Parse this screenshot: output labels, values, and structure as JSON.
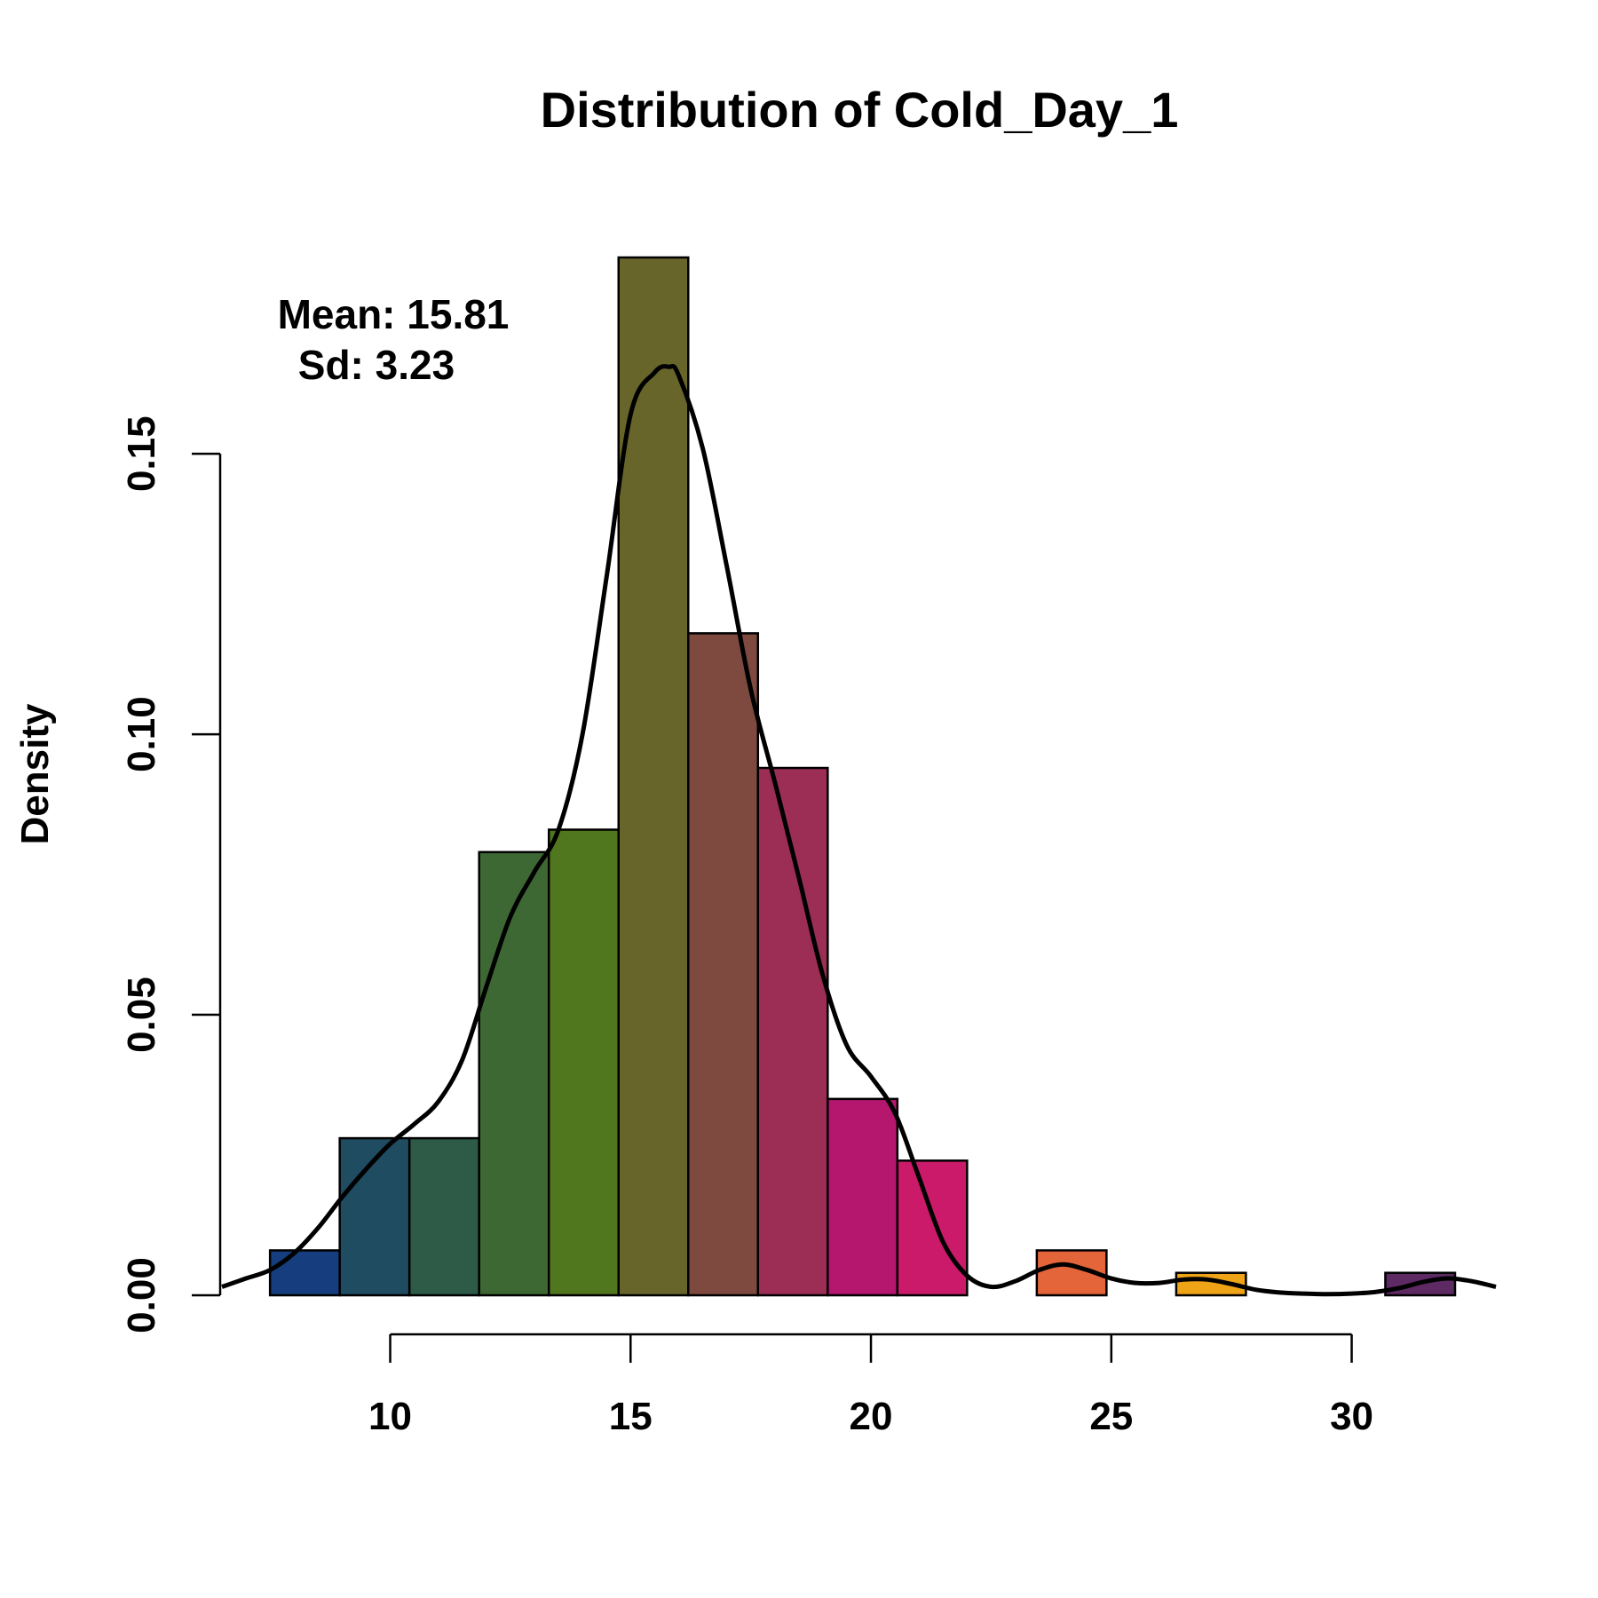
{
  "chart_data": {
    "type": "bar",
    "title": "Distribution of Cold_Day_1",
    "xlabel": "",
    "ylabel": "Density",
    "xlim": [
      6.5,
      33
    ],
    "ylim": [
      0,
      0.185
    ],
    "x_ticks": [
      10,
      15,
      20,
      25,
      30
    ],
    "x_tick_labels": [
      "10",
      "15",
      "20",
      "25",
      "30"
    ],
    "y_ticks": [
      0,
      0.05,
      0.1,
      0.15
    ],
    "y_tick_labels": [
      "0.00",
      "0.05",
      "0.10",
      "0.15"
    ],
    "bins": [
      {
        "x0": 7.5,
        "x1": 8.95,
        "density": 0.008,
        "color": "#163E7E"
      },
      {
        "x0": 8.95,
        "x1": 10.4,
        "density": 0.028,
        "color": "#1F4C61"
      },
      {
        "x0": 10.4,
        "x1": 11.85,
        "density": 0.028,
        "color": "#2D5B48"
      },
      {
        "x0": 11.85,
        "x1": 13.3,
        "density": 0.079,
        "color": "#3E6833"
      },
      {
        "x0": 13.3,
        "x1": 14.75,
        "density": 0.083,
        "color": "#50761E"
      },
      {
        "x0": 14.75,
        "x1": 16.2,
        "density": 0.185,
        "color": "#68652B"
      },
      {
        "x0": 16.2,
        "x1": 17.65,
        "density": 0.118,
        "color": "#7E4A3F"
      },
      {
        "x0": 17.65,
        "x1": 19.1,
        "density": 0.094,
        "color": "#9C2E55"
      },
      {
        "x0": 19.1,
        "x1": 20.55,
        "density": 0.035,
        "color": "#B5166E"
      },
      {
        "x0": 20.55,
        "x1": 22.0,
        "density": 0.024,
        "color": "#CA1A69"
      },
      {
        "x0": 22.0,
        "x1": 23.45,
        "density": 0.0,
        "color": "#D93A4F"
      },
      {
        "x0": 23.45,
        "x1": 24.9,
        "density": 0.008,
        "color": "#E46539"
      },
      {
        "x0": 24.9,
        "x1": 26.35,
        "density": 0.0,
        "color": "#EB8A24"
      },
      {
        "x0": 26.35,
        "x1": 27.8,
        "density": 0.004,
        "color": "#EFA417"
      },
      {
        "x0": 27.8,
        "x1": 29.25,
        "density": 0.0,
        "color": "#B07A3A"
      },
      {
        "x0": 29.25,
        "x1": 30.7,
        "density": 0.0,
        "color": "#7C4C55"
      },
      {
        "x0": 30.7,
        "x1": 32.15,
        "density": 0.004,
        "color": "#5E2A63"
      }
    ],
    "density_curve": {
      "x": [
        6.5,
        7.0,
        7.5,
        8.0,
        8.5,
        9.0,
        9.5,
        10.0,
        10.5,
        11.0,
        11.5,
        12.0,
        12.5,
        13.0,
        13.5,
        14.0,
        14.5,
        15.0,
        15.5,
        15.8,
        16.0,
        16.5,
        17.0,
        17.5,
        18.0,
        18.5,
        19.0,
        19.5,
        20.0,
        20.5,
        21.0,
        21.5,
        22.0,
        22.5,
        23.0,
        23.5,
        24.0,
        24.5,
        25.0,
        25.5,
        26.0,
        26.5,
        27.0,
        27.5,
        28.0,
        28.5,
        29.0,
        29.5,
        30.0,
        30.5,
        31.0,
        31.5,
        32.0,
        32.5,
        33.0
      ],
      "y": [
        0.0015,
        0.003,
        0.0045,
        0.0075,
        0.012,
        0.0175,
        0.0225,
        0.027,
        0.0305,
        0.0345,
        0.042,
        0.055,
        0.0675,
        0.0755,
        0.083,
        0.1,
        0.128,
        0.157,
        0.1645,
        0.1655,
        0.164,
        0.151,
        0.13,
        0.108,
        0.0915,
        0.0745,
        0.057,
        0.0445,
        0.039,
        0.0325,
        0.021,
        0.0095,
        0.0035,
        0.0015,
        0.0025,
        0.0045,
        0.0055,
        0.0045,
        0.003,
        0.0022,
        0.0022,
        0.0028,
        0.0028,
        0.002,
        0.001,
        0.0005,
        0.0003,
        0.0002,
        0.0003,
        0.0006,
        0.0013,
        0.0024,
        0.003,
        0.0025,
        0.0015
      ]
    }
  },
  "annotation": {
    "mean": "Mean: 15.81",
    "sd": "Sd: 3.23"
  }
}
